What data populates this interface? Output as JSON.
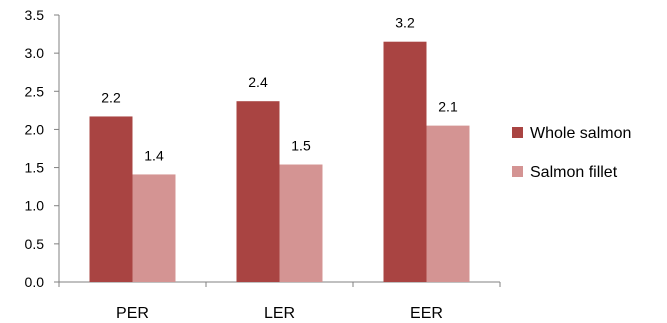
{
  "chart_data": {
    "type": "bar",
    "categories": [
      "PER",
      "LER",
      "EER"
    ],
    "series": [
      {
        "name": "Whole salmon",
        "values": [
          2.17,
          2.37,
          3.15
        ],
        "labels": [
          "2.2",
          "2.4",
          "3.2"
        ],
        "color": "#a94442"
      },
      {
        "name": "Salmon fillet",
        "values": [
          1.41,
          1.54,
          2.05
        ],
        "labels": [
          "1.4",
          "1.5",
          "2.1"
        ],
        "color": "#d49493"
      }
    ],
    "y_ticks": [
      "0.0",
      "0.5",
      "1.0",
      "1.5",
      "2.0",
      "2.5",
      "3.0",
      "3.5"
    ],
    "ylim": [
      0,
      3.5
    ],
    "grid": false,
    "legend_position": "right",
    "title": "",
    "xlabel": "",
    "ylabel": ""
  }
}
